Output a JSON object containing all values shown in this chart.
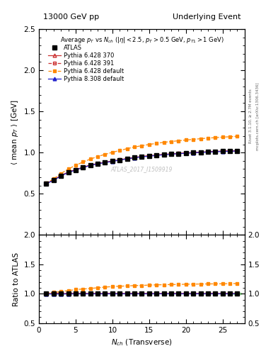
{
  "title_left": "13000 GeV pp",
  "title_right": "Underlying Event",
  "annotation": "Average $p_T$ vs $N_{ch}$ ($|\\eta| < 2.5$, $p_T > 0.5$ GeV, $p_{T1} > 1$ GeV)",
  "watermark": "ATLAS_2017_I1509919",
  "rivet_text": "Rivet 3.1.10, ≥ 2.7M events",
  "mcplots_text": "mcplots.cern.ch [arXiv:1306.3436]",
  "xlabel": "$N_{ch}$ (Transverse)",
  "ylabel_main": "$\\langle$ mean $p_T$ $\\rangle$ [GeV]",
  "ylabel_ratio": "Ratio to ATLAS",
  "xlim": [
    0,
    28
  ],
  "ylim_main": [
    0.0,
    2.5
  ],
  "ylim_ratio": [
    0.5,
    2.0
  ],
  "yticks_main": [
    0.5,
    1.0,
    1.5,
    2.0,
    2.5
  ],
  "yticks_ratio": [
    0.5,
    1.0,
    1.5,
    2.0
  ],
  "xticks": [
    0,
    5,
    10,
    15,
    20,
    25
  ],
  "nch_x": [
    1,
    2,
    3,
    4,
    5,
    6,
    7,
    8,
    9,
    10,
    11,
    12,
    13,
    14,
    15,
    16,
    17,
    18,
    19,
    20,
    21,
    22,
    23,
    24,
    25,
    26,
    27
  ],
  "atlas_y": [
    0.625,
    0.665,
    0.72,
    0.76,
    0.79,
    0.82,
    0.845,
    0.865,
    0.88,
    0.895,
    0.91,
    0.925,
    0.938,
    0.95,
    0.958,
    0.967,
    0.975,
    0.982,
    0.988,
    0.993,
    0.998,
    1.003,
    1.008,
    1.012,
    1.015,
    1.018,
    1.02
  ],
  "py6428_370_y": [
    0.625,
    0.668,
    0.722,
    0.762,
    0.792,
    0.822,
    0.847,
    0.867,
    0.882,
    0.897,
    0.912,
    0.927,
    0.94,
    0.952,
    0.96,
    0.969,
    0.977,
    0.984,
    0.99,
    0.995,
    1.0,
    1.005,
    1.01,
    1.014,
    1.017,
    1.02,
    1.022
  ],
  "py6428_391_y": [
    0.625,
    0.668,
    0.722,
    0.762,
    0.792,
    0.822,
    0.847,
    0.867,
    0.882,
    0.897,
    0.912,
    0.927,
    0.94,
    0.952,
    0.96,
    0.969,
    0.977,
    0.984,
    0.99,
    0.995,
    1.0,
    1.005,
    1.01,
    1.014,
    1.017,
    1.02,
    1.022
  ],
  "py6428_def_y": [
    0.628,
    0.68,
    0.745,
    0.8,
    0.845,
    0.885,
    0.92,
    0.952,
    0.978,
    1.003,
    1.025,
    1.047,
    1.067,
    1.083,
    1.098,
    1.112,
    1.124,
    1.134,
    1.143,
    1.152,
    1.16,
    1.168,
    1.175,
    1.181,
    1.187,
    1.192,
    1.197
  ],
  "py8308_def_y": [
    0.622,
    0.662,
    0.716,
    0.757,
    0.788,
    0.818,
    0.843,
    0.863,
    0.878,
    0.893,
    0.908,
    0.923,
    0.936,
    0.948,
    0.956,
    0.965,
    0.973,
    0.98,
    0.986,
    0.991,
    0.996,
    1.001,
    1.006,
    1.01,
    1.013,
    1.016,
    1.018
  ],
  "atlas_color": "#000000",
  "py6428_370_color": "#cc3333",
  "py6428_391_color": "#cc3333",
  "py6428_def_color": "#ff8800",
  "py8308_def_color": "#2222cc",
  "bg_color": "#ffffff",
  "legend_labels": [
    "ATLAS",
    "Pythia 6.428 370",
    "Pythia 6.428 391",
    "Pythia 6.428 default",
    "Pythia 8.308 default"
  ],
  "fig_width": 3.93,
  "fig_height": 5.12
}
